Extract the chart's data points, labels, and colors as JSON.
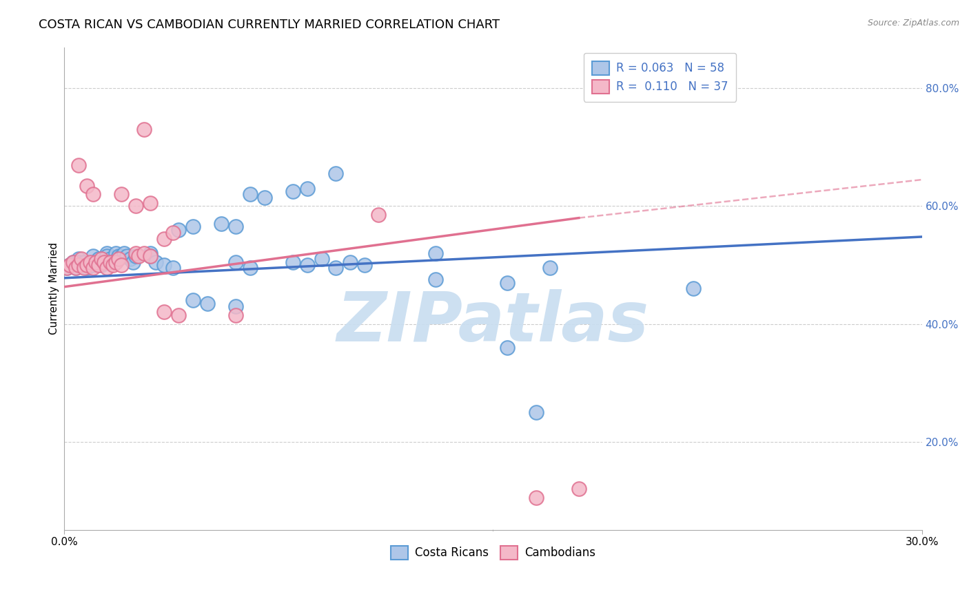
{
  "title": "COSTA RICAN VS CAMBODIAN CURRENTLY MARRIED CORRELATION CHART",
  "source": "Source: ZipAtlas.com",
  "ylabel": "Currently Married",
  "xmin": 0.0,
  "xmax": 0.3,
  "ymin": 0.05,
  "ymax": 0.87,
  "yticks": [
    0.2,
    0.4,
    0.6,
    0.8
  ],
  "ytick_labels": [
    "20.0%",
    "40.0%",
    "60.0%",
    "80.0%"
  ],
  "xtick_labels": [
    "0.0%",
    "30.0%"
  ],
  "legend_blue_r": "0.063",
  "legend_blue_n": "58",
  "legend_pink_r": "0.110",
  "legend_pink_n": "37",
  "blue_fill": "#aec6e8",
  "blue_edge": "#5b9bd5",
  "pink_fill": "#f4b8c8",
  "pink_edge": "#e07090",
  "blue_line": "#4472c4",
  "pink_line": "#e07090",
  "background": "#ffffff",
  "grid_color": "#cccccc",
  "blue_scatter": [
    [
      0.001,
      0.495
    ],
    [
      0.002,
      0.5
    ],
    [
      0.003,
      0.505
    ],
    [
      0.004,
      0.495
    ],
    [
      0.005,
      0.51
    ],
    [
      0.005,
      0.505
    ],
    [
      0.006,
      0.5
    ],
    [
      0.007,
      0.505
    ],
    [
      0.008,
      0.495
    ],
    [
      0.009,
      0.5
    ],
    [
      0.01,
      0.515
    ],
    [
      0.01,
      0.5
    ],
    [
      0.011,
      0.505
    ],
    [
      0.012,
      0.51
    ],
    [
      0.013,
      0.5
    ],
    [
      0.014,
      0.505
    ],
    [
      0.015,
      0.52
    ],
    [
      0.015,
      0.515
    ],
    [
      0.016,
      0.51
    ],
    [
      0.017,
      0.505
    ],
    [
      0.018,
      0.52
    ],
    [
      0.019,
      0.515
    ],
    [
      0.02,
      0.515
    ],
    [
      0.021,
      0.52
    ],
    [
      0.022,
      0.515
    ],
    [
      0.023,
      0.51
    ],
    [
      0.024,
      0.505
    ],
    [
      0.025,
      0.515
    ],
    [
      0.03,
      0.52
    ],
    [
      0.03,
      0.515
    ],
    [
      0.032,
      0.505
    ],
    [
      0.04,
      0.56
    ],
    [
      0.045,
      0.565
    ],
    [
      0.055,
      0.57
    ],
    [
      0.06,
      0.565
    ],
    [
      0.065,
      0.62
    ],
    [
      0.07,
      0.615
    ],
    [
      0.08,
      0.625
    ],
    [
      0.085,
      0.63
    ],
    [
      0.095,
      0.655
    ],
    [
      0.035,
      0.5
    ],
    [
      0.038,
      0.495
    ],
    [
      0.06,
      0.505
    ],
    [
      0.065,
      0.495
    ],
    [
      0.08,
      0.505
    ],
    [
      0.085,
      0.5
    ],
    [
      0.09,
      0.51
    ],
    [
      0.095,
      0.495
    ],
    [
      0.1,
      0.505
    ],
    [
      0.105,
      0.5
    ],
    [
      0.13,
      0.52
    ],
    [
      0.155,
      0.47
    ],
    [
      0.17,
      0.495
    ],
    [
      0.22,
      0.46
    ],
    [
      0.045,
      0.44
    ],
    [
      0.05,
      0.435
    ],
    [
      0.06,
      0.43
    ],
    [
      0.13,
      0.475
    ],
    [
      0.155,
      0.36
    ],
    [
      0.165,
      0.25
    ]
  ],
  "pink_scatter": [
    [
      0.001,
      0.495
    ],
    [
      0.002,
      0.5
    ],
    [
      0.003,
      0.505
    ],
    [
      0.004,
      0.495
    ],
    [
      0.005,
      0.5
    ],
    [
      0.006,
      0.51
    ],
    [
      0.007,
      0.495
    ],
    [
      0.008,
      0.5
    ],
    [
      0.009,
      0.505
    ],
    [
      0.01,
      0.495
    ],
    [
      0.011,
      0.505
    ],
    [
      0.012,
      0.5
    ],
    [
      0.013,
      0.51
    ],
    [
      0.014,
      0.505
    ],
    [
      0.015,
      0.495
    ],
    [
      0.016,
      0.505
    ],
    [
      0.017,
      0.5
    ],
    [
      0.018,
      0.505
    ],
    [
      0.019,
      0.51
    ],
    [
      0.02,
      0.5
    ],
    [
      0.025,
      0.52
    ],
    [
      0.026,
      0.515
    ],
    [
      0.028,
      0.52
    ],
    [
      0.03,
      0.515
    ],
    [
      0.035,
      0.545
    ],
    [
      0.038,
      0.555
    ],
    [
      0.02,
      0.62
    ],
    [
      0.025,
      0.6
    ],
    [
      0.03,
      0.605
    ],
    [
      0.005,
      0.67
    ],
    [
      0.008,
      0.635
    ],
    [
      0.01,
      0.62
    ],
    [
      0.028,
      0.73
    ],
    [
      0.11,
      0.585
    ],
    [
      0.035,
      0.42
    ],
    [
      0.04,
      0.415
    ],
    [
      0.06,
      0.415
    ],
    [
      0.165,
      0.105
    ],
    [
      0.18,
      0.12
    ]
  ],
  "blue_regr": [
    0.0,
    0.478,
    0.3,
    0.548
  ],
  "pink_regr_solid": [
    0.0,
    0.463,
    0.18,
    0.58
  ],
  "pink_regr_dashed": [
    0.18,
    0.58,
    0.3,
    0.645
  ],
  "watermark": "ZIPatlas",
  "watermark_color": "#c8ddf0",
  "title_fontsize": 13,
  "source_fontsize": 9,
  "tick_fontsize": 11,
  "ylabel_fontsize": 11,
  "legend_fontsize": 12
}
